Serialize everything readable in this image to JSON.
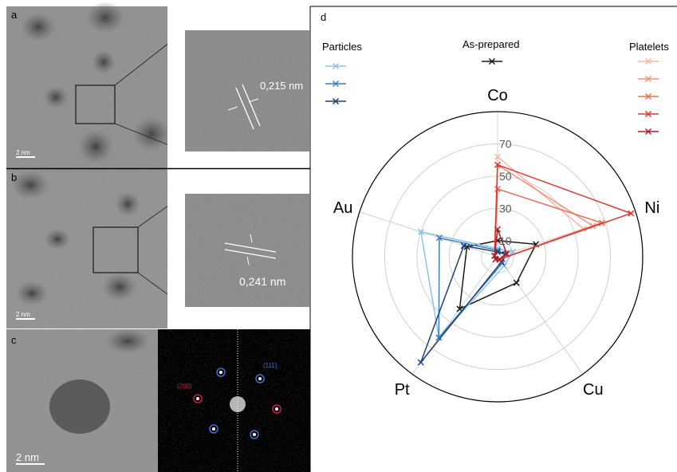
{
  "panels": {
    "a": {
      "letter": "a",
      "scale": "2 nm",
      "measure": "0,215 nm"
    },
    "b": {
      "letter": "b",
      "scale": "2 nm",
      "measure": "0,241 nm"
    },
    "c": {
      "letter": "c",
      "scale": "2 nm",
      "fft_label_200": "(200)",
      "fft_label_111": "(111)"
    },
    "d": {
      "letter": "d"
    }
  },
  "legend": {
    "particles_title": "Particles",
    "as_prepared_title": "As-prepared",
    "platelets_title": "Platelets"
  },
  "colors": {
    "as_prepared": "#1a1a1a",
    "particles": [
      "#8ec3e6",
      "#3d7fc1",
      "#1d3f7a"
    ],
    "platelets": [
      "#f6b8a7",
      "#f2937c",
      "#ec6a56",
      "#dd3a32",
      "#b51d26"
    ],
    "fft_200": "#c8194f",
    "fft_111": "#3f6fc8"
  },
  "chart_data": {
    "type": "radar",
    "axes": [
      "Co",
      "Ni",
      "Cu",
      "Pt",
      "Au"
    ],
    "r_ticks": [
      "10",
      "30",
      "50",
      "70"
    ],
    "r_max": 90,
    "grid": true,
    "series": [
      {
        "group": "As-prepared",
        "values": [
          10,
          25,
          20,
          40,
          20
        ]
      },
      {
        "group": "Particles",
        "values": [
          5,
          10,
          7,
          62,
          50
        ]
      },
      {
        "group": "Particles",
        "values": [
          4,
          5,
          5,
          62,
          38
        ]
      },
      {
        "group": "Particles",
        "values": [
          3,
          5,
          4,
          81,
          22
        ]
      },
      {
        "group": "Platelets",
        "values": [
          62,
          56,
          2,
          2,
          2
        ]
      },
      {
        "group": "Platelets",
        "values": [
          57,
          62,
          2,
          2,
          2
        ]
      },
      {
        "group": "Platelets",
        "values": [
          42,
          68,
          2,
          2,
          2
        ]
      },
      {
        "group": "Platelets",
        "values": [
          57,
          87,
          2,
          2,
          2
        ]
      },
      {
        "group": "Platelets",
        "values": [
          17,
          6,
          2,
          2,
          2
        ]
      }
    ]
  }
}
